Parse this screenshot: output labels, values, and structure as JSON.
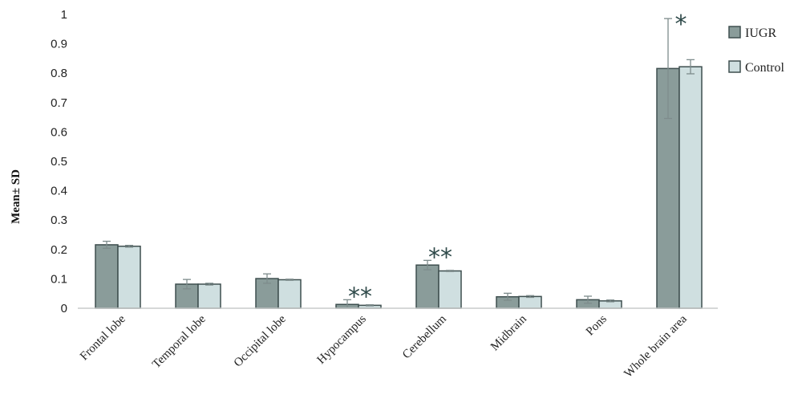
{
  "chart_data": {
    "type": "bar",
    "ylabel": "Mean± SD",
    "ylim": [
      0,
      1
    ],
    "yticks": [
      "0",
      "0.1",
      "0.2",
      "0.3",
      "0.4",
      "0.5",
      "0.6",
      "0.7",
      "0.8",
      "0.9",
      "1"
    ],
    "categories": [
      "Frontal lobe",
      "Temporal lobe",
      "Occipital lobe",
      "Hypocampus",
      "Cerebellum",
      "Midbrain",
      "Pons",
      "Whole brain area"
    ],
    "series": [
      {
        "name": "IUGR",
        "color": "#8a9c9a",
        "values": [
          0.216,
          0.082,
          0.101,
          0.013,
          0.147,
          0.039,
          0.029,
          0.816
        ],
        "errors": [
          0.012,
          0.016,
          0.016,
          0.016,
          0.016,
          0.012,
          0.012,
          0.17
        ]
      },
      {
        "name": "Control",
        "color": "#cfdfe0",
        "values": [
          0.211,
          0.082,
          0.097,
          0.01,
          0.127,
          0.04,
          0.025,
          0.822
        ],
        "errors": [
          0.003,
          0.003,
          0.002,
          0.002,
          0.002,
          0.003,
          0.003,
          0.024
        ]
      }
    ],
    "annotations": [
      {
        "category": "Hypocampus",
        "text": "**"
      },
      {
        "category": "Cerebellum",
        "text": "**"
      },
      {
        "category": "Whole brain area",
        "text": "*"
      }
    ],
    "legend_position": "right",
    "grid": false
  }
}
